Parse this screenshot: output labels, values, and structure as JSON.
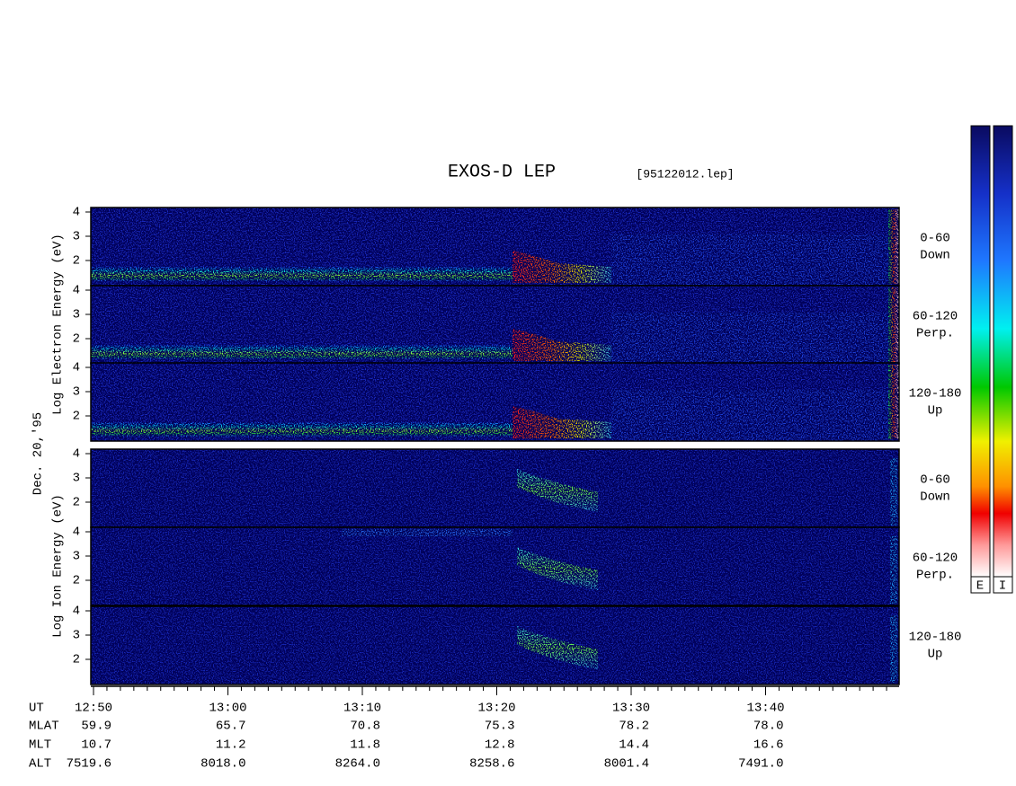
{
  "header": {
    "title": "EXOS-D LEP",
    "file": "[95122012.lep]"
  },
  "left_labels": {
    "electron": "Log  Electron  Energy (eV)",
    "date": "Dec. 20,'95",
    "ion": "Log  Ion  Energy (eV)"
  },
  "panels": [
    {
      "angle": "0-60",
      "direction": "Down",
      "yticks": [
        4,
        3,
        2
      ]
    },
    {
      "angle": "60-120",
      "direction": "Perp.",
      "yticks": [
        4,
        3,
        2
      ]
    },
    {
      "angle": "120-180",
      "direction": "Up",
      "yticks": [
        4,
        3,
        2
      ]
    },
    {
      "angle": "0-60",
      "direction": "Down",
      "yticks": [
        4,
        3,
        2
      ]
    },
    {
      "angle": "60-120",
      "direction": "Perp.",
      "yticks": [
        4,
        3,
        2
      ]
    },
    {
      "angle": "120-180",
      "direction": "Up",
      "yticks": [
        4,
        3,
        2
      ]
    }
  ],
  "time_axis": {
    "row_label": "UT",
    "ticks": [
      "12:50",
      "13:00",
      "13:10",
      "13:20",
      "13:30",
      "13:40"
    ]
  },
  "orbit": [
    {
      "label": "MLAT",
      "values": [
        "59.9",
        "65.7",
        "70.8",
        "75.3",
        "78.2",
        "78.0"
      ]
    },
    {
      "label": "MLT",
      "values": [
        "10.7",
        "11.2",
        "11.8",
        "12.8",
        "14.4",
        "16.6"
      ]
    },
    {
      "label": "ALT",
      "values": [
        "7519.6",
        "8018.0",
        "8264.0",
        "8258.6",
        "8001.4",
        "7491.0"
      ]
    }
  ],
  "colorbar": {
    "labels": [
      "E",
      "I"
    ]
  }
}
